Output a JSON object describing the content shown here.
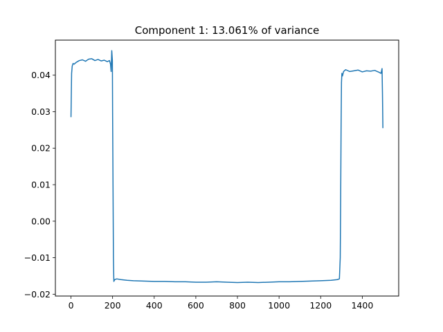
{
  "chart_data": {
    "type": "line",
    "title": "Component 1: 13.061% of variance",
    "xlabel": "",
    "ylabel": "",
    "xlim": [
      -75,
      1575
    ],
    "ylim": [
      -0.0205,
      0.0496
    ],
    "grid": false,
    "legend": "none",
    "x_ticks": [
      0,
      200,
      400,
      600,
      800,
      1000,
      1200,
      1400
    ],
    "x_tick_labels": [
      "0",
      "200",
      "400",
      "600",
      "800",
      "1000",
      "1200",
      "1400"
    ],
    "y_ticks": [
      -0.02,
      -0.01,
      0.0,
      0.01,
      0.02,
      0.03,
      0.04
    ],
    "y_tick_labels": [
      "−0.02",
      "−0.01",
      "0.00",
      "0.01",
      "0.02",
      "0.03",
      "0.04"
    ],
    "series": [
      {
        "color": "#1f77b4",
        "x": [
          0,
          3,
          6,
          10,
          15,
          25,
          40,
          55,
          70,
          85,
          100,
          115,
          130,
          145,
          160,
          175,
          185,
          190,
          193,
          196,
          199,
          200,
          202,
          204,
          206,
          210,
          220,
          240,
          270,
          300,
          350,
          400,
          450,
          500,
          550,
          600,
          650,
          700,
          750,
          800,
          850,
          900,
          950,
          1000,
          1050,
          1100,
          1150,
          1200,
          1250,
          1280,
          1290,
          1294,
          1296,
          1298,
          1300,
          1302,
          1305,
          1310,
          1320,
          1340,
          1360,
          1380,
          1400,
          1420,
          1440,
          1460,
          1480,
          1490,
          1495,
          1497,
          1499
        ],
        "y": [
          0.0285,
          0.0405,
          0.0425,
          0.0432,
          0.043,
          0.0435,
          0.044,
          0.0442,
          0.0438,
          0.0444,
          0.0445,
          0.044,
          0.0443,
          0.0439,
          0.0441,
          0.0437,
          0.044,
          0.043,
          0.041,
          0.0467,
          0.044,
          0.03,
          0.01,
          -0.01,
          -0.0165,
          -0.016,
          -0.0158,
          -0.016,
          -0.0162,
          -0.0163,
          -0.0164,
          -0.0165,
          -0.0165,
          -0.0166,
          -0.0166,
          -0.0167,
          -0.0167,
          -0.0166,
          -0.0167,
          -0.0168,
          -0.0167,
          -0.0168,
          -0.0167,
          -0.0166,
          -0.0166,
          -0.0165,
          -0.0164,
          -0.0163,
          -0.0162,
          -0.016,
          -0.0158,
          -0.01,
          0.005,
          0.025,
          0.038,
          0.0405,
          0.0398,
          0.041,
          0.0415,
          0.041,
          0.0412,
          0.0414,
          0.0409,
          0.0412,
          0.0411,
          0.0413,
          0.0408,
          0.0405,
          0.0418,
          0.035,
          0.0255
        ]
      }
    ]
  }
}
